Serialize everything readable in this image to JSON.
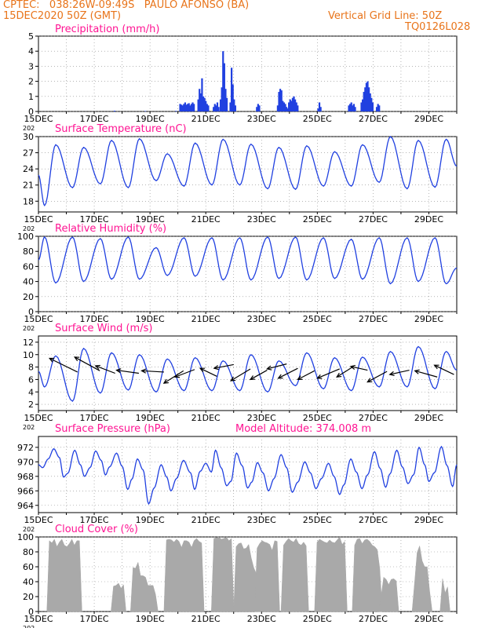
{
  "header": {
    "line1_left": "CPTEC:   038:26W-09:49S   PAULO AFONSO (BA)",
    "line2_left": "15DEC2020 50Z (GMT)",
    "line2_right": "Vertical Grid Line: 50Z",
    "line3_right": "TQ0126L028",
    "altitude": "Model Altitude: 374.008 m",
    "title_color": "#e8741a"
  },
  "colors": {
    "panel_title": "#ff1493",
    "line": "#2040e0",
    "bar": "#2040e0",
    "cloud": "#a9a9a9",
    "grid": "#888888",
    "arrow": "#000000"
  },
  "x_axis": {
    "tick_labels": [
      "15DEC",
      "17DEC",
      "19DEC",
      "21DEC",
      "23DEC",
      "25DEC",
      "27DEC",
      "29DEC"
    ],
    "year_stub": "202",
    "days": 15
  },
  "chart_data": [
    {
      "id": "precip",
      "type": "bar",
      "title": "Precipitation (mm/h)",
      "ylim": [
        0,
        5
      ],
      "yticks": [
        0,
        1,
        2,
        3,
        4,
        5
      ],
      "grid": true,
      "bursts": [
        {
          "x": 2.7,
          "vals": [
            0.05
          ]
        },
        {
          "x": 3.8,
          "vals": [
            0.03
          ]
        },
        {
          "x": 4.9,
          "vals": [
            0.04
          ]
        },
        {
          "x": 5.05,
          "vals": [
            0.5,
            0.45,
            0.4,
            0.5,
            0.6,
            0.45,
            0.5,
            0.55,
            0.4,
            0.5,
            0.6,
            0.5
          ]
        },
        {
          "x": 5.7,
          "vals": [
            0.8,
            1.5,
            1.2,
            2.2,
            1.0,
            0.9,
            0.7,
            0.5,
            0.4
          ]
        },
        {
          "x": 6.25,
          "vals": [
            0.3,
            0.5,
            0.4,
            0.6,
            0.3
          ]
        },
        {
          "x": 6.5,
          "vals": [
            0.8,
            1.6,
            4.0,
            3.2,
            1.5,
            0.9
          ]
        },
        {
          "x": 6.85,
          "vals": [
            0.6,
            2.9,
            1.8,
            0.8,
            0.4
          ]
        },
        {
          "x": 7.8,
          "vals": [
            0.3,
            0.5,
            0.4
          ]
        },
        {
          "x": 8.55,
          "vals": [
            0.4,
            1.3,
            1.5,
            1.4,
            0.7,
            0.6,
            0.5,
            0.3,
            0.2
          ]
        },
        {
          "x": 8.95,
          "vals": [
            0.6,
            0.8,
            0.7,
            0.9,
            1.0,
            0.8,
            0.6,
            0.4
          ]
        },
        {
          "x": 10.0,
          "vals": [
            0.2,
            0.6,
            0.3
          ]
        },
        {
          "x": 11.1,
          "vals": [
            0.4,
            0.5,
            0.6,
            0.4,
            0.5,
            0.3
          ]
        },
        {
          "x": 11.55,
          "vals": [
            0.6,
            0.8,
            1.3,
            1.6,
            1.9,
            2.0,
            1.6,
            1.2,
            0.9,
            0.6
          ]
        },
        {
          "x": 12.1,
          "vals": [
            0.3,
            0.5,
            0.4
          ]
        }
      ]
    },
    {
      "id": "temp",
      "type": "line",
      "title": "Surface Temperature (nC)",
      "ylim": [
        16,
        30
      ],
      "yticks": [
        18,
        21,
        24,
        27,
        30
      ],
      "grid": true,
      "mins": [
        17.2,
        20.5,
        21.2,
        20.5,
        21.8,
        20.8,
        21.0,
        21.0,
        20.3,
        20.2,
        20.8,
        20.8,
        21.5,
        20.3,
        20.6
      ],
      "maxs": [
        28.5,
        28.0,
        29.3,
        29.6,
        26.8,
        28.8,
        29.5,
        28.6,
        28.0,
        28.3,
        27.2,
        28.5,
        30.0,
        29.3,
        29.5
      ],
      "end_value": 24.5
    },
    {
      "id": "rh",
      "type": "line",
      "title": "Relative Humidity (%)",
      "ylim": [
        0,
        100
      ],
      "yticks": [
        0,
        20,
        40,
        60,
        80,
        100
      ],
      "grid": true,
      "mins": [
        38,
        40,
        43,
        43,
        48,
        47,
        42,
        42,
        44,
        42,
        44,
        43,
        37,
        40,
        37
      ],
      "maxs": [
        99,
        99,
        97,
        99,
        85,
        98,
        98,
        98,
        99,
        99,
        98,
        96,
        98,
        98,
        98
      ],
      "end_value": 58
    },
    {
      "id": "wind",
      "type": "line",
      "title": "Surface Wind (m/s)",
      "ylim": [
        1,
        13
      ],
      "yticks": [
        2,
        4,
        6,
        8,
        10,
        12
      ],
      "grid": true,
      "mins": [
        4.8,
        2.5,
        3.8,
        4.3,
        4.0,
        4.2,
        4.2,
        4.2,
        4.0,
        5.0,
        4.5,
        4.2,
        4.8,
        4.8,
        4.5
      ],
      "maxs": [
        9.8,
        11.0,
        10.3,
        10.0,
        9.3,
        9.5,
        9.0,
        10.0,
        9.0,
        10.3,
        9.5,
        9.6,
        10.5,
        11.3,
        10.5
      ],
      "end_value": 7.5,
      "arrows": [
        [
          0.4,
          9.4,
          1.4,
          7.2
        ],
        [
          1.3,
          9.6,
          2.2,
          7.4
        ],
        [
          2.05,
          8.2,
          2.75,
          7.0
        ],
        [
          2.8,
          7.5,
          3.6,
          7.0
        ],
        [
          3.7,
          7.4,
          4.5,
          7.2
        ],
        [
          4.5,
          5.4,
          5.2,
          7.4
        ],
        [
          4.9,
          6.4,
          5.6,
          7.6
        ],
        [
          5.8,
          7.8,
          6.4,
          6.5
        ],
        [
          6.3,
          7.8,
          7.0,
          8.4
        ],
        [
          6.9,
          5.8,
          7.6,
          7.7
        ],
        [
          7.6,
          6.0,
          8.2,
          7.5
        ],
        [
          8.2,
          7.7,
          8.9,
          8.5
        ],
        [
          8.6,
          6.2,
          9.3,
          7.8
        ],
        [
          9.3,
          6.0,
          9.9,
          7.4
        ],
        [
          10.0,
          6.2,
          10.8,
          7.7
        ],
        [
          10.7,
          6.4,
          11.3,
          8.1
        ],
        [
          11.2,
          8.1,
          11.8,
          7.5
        ],
        [
          11.8,
          5.6,
          12.5,
          7.3
        ],
        [
          12.6,
          6.8,
          13.3,
          7.5
        ],
        [
          13.5,
          7.4,
          14.3,
          6.4
        ],
        [
          14.2,
          8.3,
          14.9,
          6.8
        ]
      ]
    },
    {
      "id": "pres",
      "type": "line",
      "title": "Surface Pressure (hPa)",
      "ylim": [
        963,
        973.5
      ],
      "yticks": [
        964,
        966,
        968,
        970,
        972
      ],
      "grid": true,
      "series": [
        [
          0.0,
          969.6
        ],
        [
          0.15,
          969.2
        ],
        [
          0.35,
          970.4
        ],
        [
          0.55,
          971.8
        ],
        [
          0.75,
          970.6
        ],
        [
          0.9,
          967.9
        ],
        [
          1.05,
          968.4
        ],
        [
          1.3,
          971.6
        ],
        [
          1.5,
          969.6
        ],
        [
          1.65,
          968.0
        ],
        [
          1.85,
          969.2
        ],
        [
          2.05,
          971.5
        ],
        [
          2.25,
          970.2
        ],
        [
          2.4,
          968.2
        ],
        [
          2.55,
          969.3
        ],
        [
          2.8,
          971.2
        ],
        [
          3.0,
          969.4
        ],
        [
          3.2,
          966.2
        ],
        [
          3.35,
          967.6
        ],
        [
          3.55,
          970.4
        ],
        [
          3.75,
          968.9
        ],
        [
          3.95,
          964.2
        ],
        [
          4.15,
          966.4
        ],
        [
          4.4,
          969.6
        ],
        [
          4.6,
          967.9
        ],
        [
          4.75,
          966.0
        ],
        [
          4.95,
          967.7
        ],
        [
          5.2,
          970.2
        ],
        [
          5.45,
          968.5
        ],
        [
          5.6,
          966.2
        ],
        [
          5.8,
          968.7
        ],
        [
          6.0,
          969.8
        ],
        [
          6.2,
          968.6
        ],
        [
          6.35,
          971.6
        ],
        [
          6.55,
          969.2
        ],
        [
          6.75,
          966.7
        ],
        [
          6.9,
          967.3
        ],
        [
          7.1,
          971.2
        ],
        [
          7.3,
          969.5
        ],
        [
          7.5,
          966.4
        ],
        [
          7.65,
          967.2
        ],
        [
          7.85,
          969.9
        ],
        [
          8.05,
          968.5
        ],
        [
          8.25,
          966.0
        ],
        [
          8.45,
          967.7
        ],
        [
          8.7,
          971.0
        ],
        [
          8.9,
          969.2
        ],
        [
          9.1,
          965.8
        ],
        [
          9.3,
          967.2
        ],
        [
          9.55,
          970.0
        ],
        [
          9.75,
          968.5
        ],
        [
          9.95,
          966.3
        ],
        [
          10.15,
          967.7
        ],
        [
          10.4,
          969.8
        ],
        [
          10.6,
          968.0
        ],
        [
          10.8,
          965.5
        ],
        [
          10.95,
          966.8
        ],
        [
          11.2,
          970.4
        ],
        [
          11.4,
          968.6
        ],
        [
          11.6,
          966.3
        ],
        [
          11.8,
          968.2
        ],
        [
          12.05,
          971.4
        ],
        [
          12.25,
          969.1
        ],
        [
          12.45,
          966.5
        ],
        [
          12.6,
          968.3
        ],
        [
          12.85,
          971.6
        ],
        [
          13.05,
          969.3
        ],
        [
          13.25,
          967.0
        ],
        [
          13.45,
          968.2
        ],
        [
          13.65,
          972.0
        ],
        [
          13.85,
          969.6
        ],
        [
          14.0,
          967.3
        ],
        [
          14.2,
          968.5
        ],
        [
          14.45,
          972.1
        ],
        [
          14.65,
          969.5
        ],
        [
          14.85,
          966.6
        ],
        [
          15.0,
          969.6
        ]
      ]
    },
    {
      "id": "cloud",
      "type": "area",
      "title": "Cloud Cover (%)",
      "ylim": [
        0,
        100
      ],
      "yticks": [
        0,
        20,
        40,
        60,
        80,
        100
      ],
      "grid": true,
      "segments": [
        [
          0.3,
          0,
          96,
          91,
          94,
          89,
          93,
          95,
          92,
          88,
          90,
          94,
          91,
          95,
          93,
          0
        ],
        [
          2.6,
          0,
          35,
          34,
          35,
          33,
          36,
          0
        ],
        [
          3.3,
          0,
          60,
          57,
          63,
          50,
          48,
          44,
          38,
          36,
          34,
          20,
          0
        ],
        [
          4.5,
          0,
          97,
          96,
          93,
          95,
          97,
          92,
          89,
          96,
          94,
          90,
          88,
          95,
          96,
          97,
          93,
          0
        ],
        [
          6.2,
          0,
          99,
          98,
          99,
          99,
          98,
          99,
          98,
          99,
          0
        ],
        [
          7.0,
          0,
          88,
          90,
          89,
          86,
          85,
          88,
          75,
          60,
          50,
          40,
          0
        ],
        [
          7.75,
          0,
          86,
          90,
          92,
          95,
          92,
          88,
          85,
          96,
          93,
          0
        ],
        [
          8.7,
          0,
          90,
          93,
          95,
          97,
          93,
          96,
          94,
          90,
          92,
          85,
          0
        ],
        [
          9.9,
          0,
          94,
          96,
          92,
          95,
          92,
          94,
          96,
          93,
          95,
          97,
          92,
          94,
          0
        ],
        [
          11.25,
          0,
          90,
          96,
          95,
          93,
          96,
          95,
          97,
          90,
          86,
          80,
          60,
          0
        ],
        [
          12.2,
          0,
          22,
          45,
          40,
          38,
          43,
          42,
          44,
          0
        ],
        [
          13.4,
          0,
          40,
          78,
          85,
          70,
          60,
          58,
          30,
          0
        ],
        [
          14.4,
          0,
          45,
          24,
          30,
          0
        ]
      ]
    }
  ]
}
